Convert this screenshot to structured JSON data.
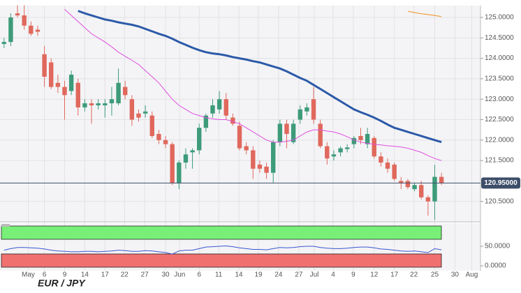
{
  "chart_data": {
    "type": "candlestick",
    "title": "EUR / JPY",
    "up_color": "#3d9b7a",
    "down_color": "#e0685c",
    "grid": true,
    "open": [
      124.35,
      124.4,
      125.1,
      125.05,
      124.8,
      124.7,
      124.1,
      123.9,
      123.4,
      123.3,
      123.2,
      123.4,
      122.8,
      122.9,
      122.85,
      122.85,
      122.9,
      122.9,
      123.3,
      123.0,
      122.65,
      122.65,
      122.6,
      122.15,
      122.0,
      121.9,
      120.95,
      121.45,
      121.7,
      121.75,
      122.3,
      122.65,
      122.75,
      123.0,
      122.55,
      122.35,
      121.85,
      121.75,
      121.4,
      121.35,
      121.2,
      121.95,
      122.4,
      121.95,
      122.5,
      122.7,
      123.0,
      122.4,
      121.85,
      121.6,
      121.7,
      121.78,
      121.9,
      122.1,
      121.9,
      122.05,
      121.6,
      121.45,
      121.4,
      121.0,
      121.0,
      120.8,
      120.9,
      120.6,
      120.5,
      121.1
    ],
    "high": [
      124.5,
      125.1,
      125.3,
      125.3,
      124.9,
      124.8,
      124.3,
      124.0,
      123.6,
      123.45,
      123.7,
      123.5,
      123.0,
      123.0,
      123.0,
      123.0,
      123.3,
      123.75,
      123.45,
      123.1,
      122.75,
      122.85,
      122.7,
      122.25,
      122.1,
      121.95,
      121.5,
      121.8,
      121.8,
      122.4,
      122.65,
      123.0,
      123.2,
      123.15,
      122.65,
      122.45,
      121.95,
      121.85,
      121.5,
      121.45,
      122.0,
      122.5,
      122.5,
      122.5,
      122.85,
      122.9,
      123.3,
      122.5,
      121.95,
      121.75,
      121.85,
      121.9,
      122.1,
      122.3,
      122.3,
      122.1,
      121.7,
      121.55,
      121.45,
      121.1,
      121.05,
      120.95,
      121.0,
      120.65,
      121.4,
      121.2
    ],
    "low": [
      124.25,
      124.3,
      125.0,
      124.7,
      124.55,
      124.55,
      123.3,
      123.25,
      123.15,
      122.5,
      123.1,
      122.6,
      122.7,
      122.4,
      122.75,
      122.55,
      122.6,
      122.85,
      123.0,
      122.35,
      122.45,
      122.55,
      122.05,
      121.9,
      121.8,
      120.9,
      120.8,
      121.3,
      121.3,
      121.65,
      122.2,
      122.55,
      122.65,
      122.5,
      122.35,
      121.75,
      121.65,
      121.05,
      121.2,
      121.05,
      120.95,
      121.85,
      121.8,
      121.9,
      122.4,
      122.6,
      122.4,
      121.8,
      121.4,
      121.5,
      121.6,
      121.7,
      121.8,
      121.9,
      121.8,
      121.55,
      121.35,
      121.2,
      121.0,
      120.8,
      120.8,
      120.75,
      120.55,
      120.15,
      120.05,
      120.9
    ],
    "close": [
      124.4,
      125.0,
      125.05,
      124.8,
      124.6,
      124.65,
      123.55,
      123.3,
      123.3,
      123.1,
      123.6,
      122.8,
      122.9,
      122.85,
      122.9,
      122.9,
      123.0,
      123.4,
      123.1,
      122.5,
      122.55,
      122.7,
      122.1,
      122.0,
      121.9,
      120.95,
      121.45,
      121.65,
      121.75,
      122.3,
      122.6,
      122.85,
      123.0,
      122.6,
      122.4,
      121.8,
      121.75,
      121.3,
      121.3,
      121.2,
      121.95,
      122.4,
      122.15,
      122.4,
      122.75,
      122.8,
      122.5,
      121.85,
      121.55,
      121.65,
      121.8,
      121.82,
      122.05,
      122.0,
      122.15,
      121.6,
      121.45,
      121.3,
      121.05,
      120.95,
      120.85,
      120.9,
      120.6,
      120.5,
      121.1,
      120.95
    ],
    "xlim": [
      -0.6,
      70.8
    ],
    "xticks": [
      {
        "value": 3.6,
        "label": "May"
      },
      {
        "value": 6.0,
        "label": "6"
      },
      {
        "value": 9.0,
        "label": "9"
      },
      {
        "value": 12.0,
        "label": "14"
      },
      {
        "value": 15.0,
        "label": "17"
      },
      {
        "value": 17.9,
        "label": "22"
      },
      {
        "value": 20.9,
        "label": "27"
      },
      {
        "value": 24.0,
        "label": "30"
      },
      {
        "value": 26.1,
        "label": "Jun"
      },
      {
        "value": 29.0,
        "label": "6"
      },
      {
        "value": 31.9,
        "label": "11"
      },
      {
        "value": 34.9,
        "label": "14"
      },
      {
        "value": 37.8,
        "label": "19"
      },
      {
        "value": 40.8,
        "label": "24"
      },
      {
        "value": 43.8,
        "label": "27"
      },
      {
        "value": 46.1,
        "label": "Jul"
      },
      {
        "value": 48.9,
        "label": "4"
      },
      {
        "value": 51.9,
        "label": "9"
      },
      {
        "value": 55.0,
        "label": "12"
      },
      {
        "value": 58.0,
        "label": "17"
      },
      {
        "value": 60.9,
        "label": "22"
      },
      {
        "value": 64.0,
        "label": "25"
      },
      {
        "value": 67.0,
        "label": "30"
      },
      {
        "value": 69.5,
        "label": "Aug"
      }
    ],
    "ylim": [
      120.0,
      125.29
    ],
    "yticks": [
      {
        "value": 125,
        "label": "125.0000"
      },
      {
        "value": 124.5,
        "label": "124.5000"
      },
      {
        "value": 124,
        "label": "124.0000"
      },
      {
        "value": 123.5,
        "label": "123.5000"
      },
      {
        "value": 123,
        "label": "123.0000"
      },
      {
        "value": 122.5,
        "label": "122.5000"
      },
      {
        "value": 122,
        "label": "122.0000"
      },
      {
        "value": 121.5,
        "label": "121.5000"
      },
      {
        "value": 120.5,
        "label": "120.5000"
      }
    ],
    "series": [
      {
        "color": "#2c5aa8",
        "width": 3,
        "values": [
          null,
          null,
          null,
          null,
          null,
          null,
          null,
          null,
          null,
          null,
          null,
          125.16,
          125.1,
          125.05,
          125.0,
          124.95,
          124.92,
          124.88,
          124.85,
          124.82,
          124.78,
          124.72,
          124.66,
          124.6,
          124.55,
          124.48,
          124.4,
          124.33,
          124.26,
          124.2,
          124.15,
          124.12,
          124.1,
          124.07,
          124.03,
          124.0,
          123.97,
          123.93,
          123.9,
          123.85,
          123.8,
          123.75,
          123.68,
          123.6,
          123.52,
          123.45,
          123.35,
          123.25,
          123.15,
          123.05,
          122.95,
          122.85,
          122.75,
          122.68,
          122.62,
          122.55,
          122.47,
          122.38,
          122.3,
          122.25,
          122.2,
          122.15,
          122.1,
          122.05,
          122.0,
          121.95
        ]
      },
      {
        "color": "#e04ee0",
        "width": 1,
        "values": [
          null,
          null,
          null,
          null,
          null,
          null,
          null,
          null,
          null,
          125.2,
          125.05,
          124.9,
          124.75,
          124.6,
          124.5,
          124.4,
          124.28,
          124.15,
          124.05,
          123.95,
          123.85,
          123.7,
          123.55,
          123.4,
          123.2,
          123.0,
          122.85,
          122.75,
          122.65,
          122.6,
          122.55,
          122.52,
          122.5,
          122.5,
          122.45,
          122.4,
          122.3,
          122.2,
          122.1,
          122.0,
          121.95,
          121.95,
          121.97,
          122.0,
          122.1,
          122.2,
          122.25,
          122.25,
          122.22,
          122.2,
          122.15,
          122.08,
          122.0,
          121.95,
          121.92,
          121.9,
          121.88,
          121.86,
          121.85,
          121.83,
          121.8,
          121.75,
          121.7,
          121.62,
          121.55,
          121.5
        ]
      },
      {
        "color": "#f0a040",
        "width": 1.2,
        "values": [
          null,
          null,
          null,
          null,
          null,
          null,
          null,
          null,
          null,
          null,
          null,
          null,
          null,
          null,
          null,
          null,
          null,
          null,
          null,
          null,
          null,
          null,
          null,
          null,
          null,
          null,
          null,
          null,
          null,
          null,
          null,
          null,
          null,
          null,
          null,
          null,
          null,
          null,
          null,
          null,
          null,
          null,
          null,
          null,
          null,
          null,
          null,
          null,
          null,
          null,
          null,
          null,
          null,
          null,
          null,
          null,
          null,
          null,
          null,
          null,
          125.15,
          125.12,
          125.09,
          125.07,
          125.05,
          125.02
        ]
      }
    ],
    "last_price": {
      "value": 120.95,
      "label": "120.95000"
    },
    "oscillator": {
      "color": "#3a55d0",
      "ylim": [
        -12.5,
        109
      ],
      "yticks": [
        {
          "value": 50,
          "label": "50.0000"
        },
        {
          "value": 0,
          "label": "0.0000"
        }
      ],
      "values": [
        40,
        44,
        47,
        47,
        46,
        45,
        43,
        40,
        38,
        37,
        36,
        36,
        37,
        37,
        36,
        37,
        38,
        40,
        39,
        37,
        37,
        39,
        38,
        36,
        34,
        30,
        38,
        40,
        40,
        44,
        48,
        49,
        50,
        51,
        49,
        46,
        44,
        42,
        42,
        41,
        44,
        47,
        46,
        47,
        49,
        50,
        50,
        47,
        45,
        44,
        44,
        45,
        47,
        48,
        48,
        46,
        43,
        42,
        40,
        38,
        37,
        38,
        36,
        34,
        44,
        41
      ]
    }
  }
}
